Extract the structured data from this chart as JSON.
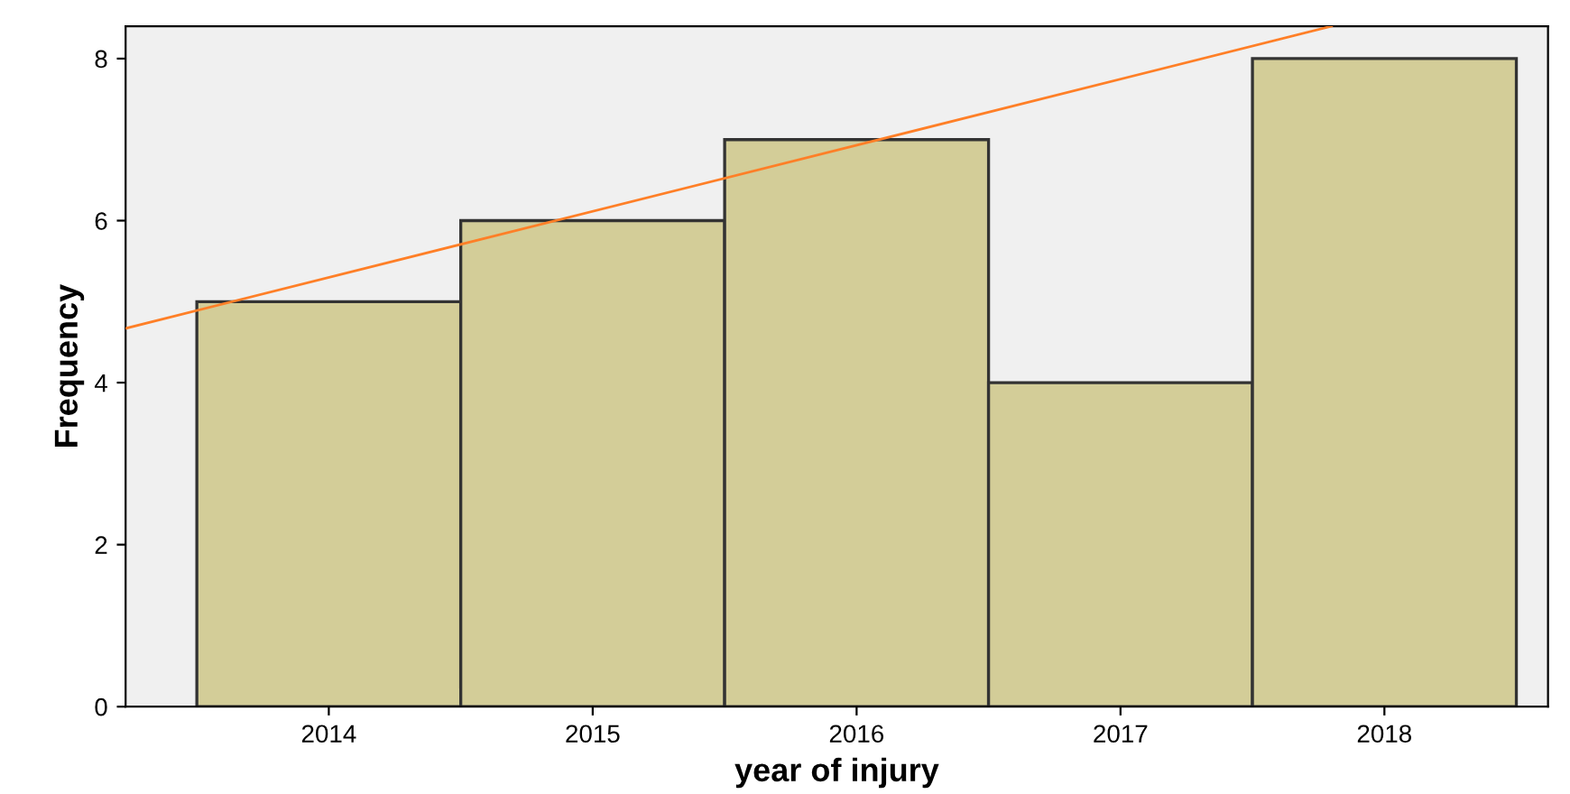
{
  "chart_data": {
    "type": "histogram",
    "xlabel": "year of injury",
    "ylabel": "Frequency",
    "xlim": [
      2013.23,
      2018.62
    ],
    "xticks": [
      2014,
      2015,
      2016,
      2017,
      2018
    ],
    "ylim": [
      0,
      8.4
    ],
    "yticks": [
      0,
      2,
      4,
      6,
      8
    ],
    "grid": false,
    "legend": false,
    "series": [
      {
        "type": "histogram",
        "color": "#d3cd98",
        "bins": [
          2013.5,
          2014.5,
          2015.5,
          2016.5,
          2017.5,
          2018.5
        ],
        "values": [
          5,
          6,
          7,
          4,
          8
        ]
      },
      {
        "type": "line",
        "color": "#ff7f27",
        "x": [
          2013.23,
          2017.8
        ],
        "values": [
          4.67,
          8.4
        ]
      }
    ]
  }
}
